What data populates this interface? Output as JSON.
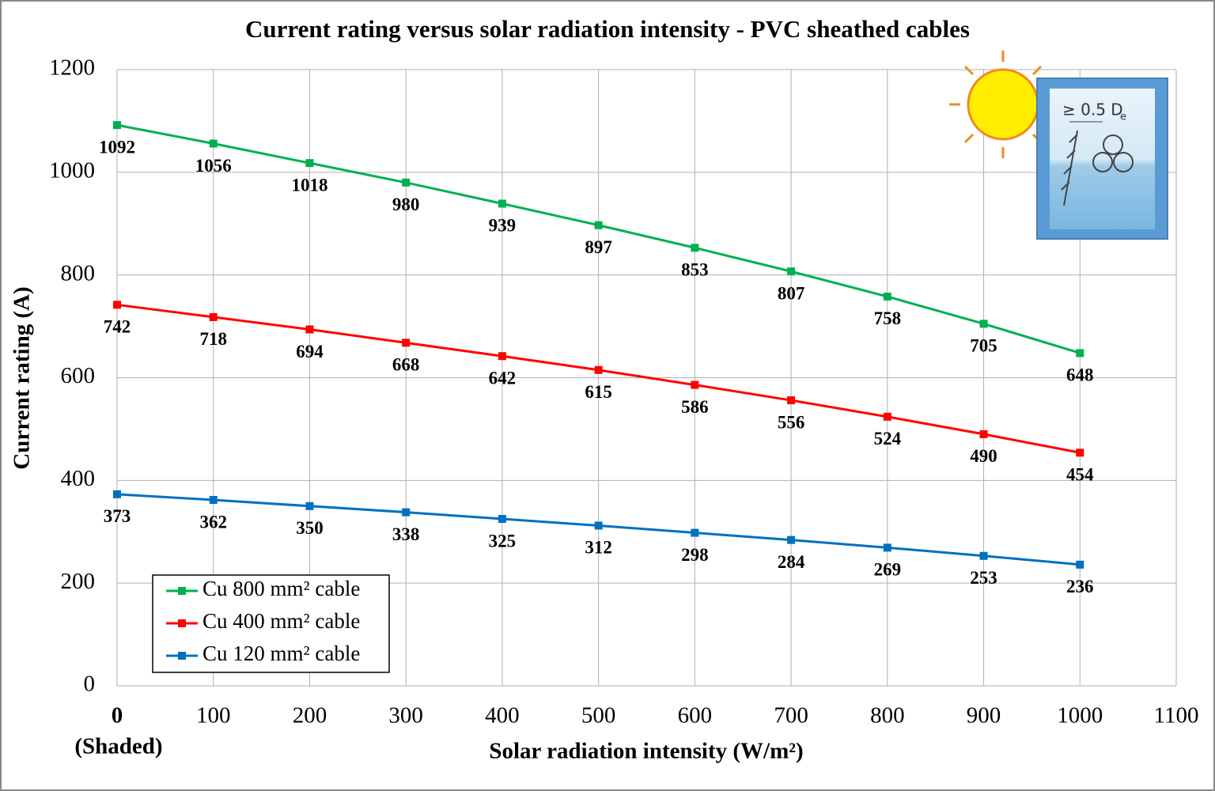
{
  "chart_data": {
    "type": "line",
    "title": "Current rating versus solar radiation intensity - PVC sheathed cables",
    "x_label": "Solar radiation intensity (W/m²)",
    "y_label": "Current rating (A)",
    "x_annotation": "(Shaded)",
    "icon_text": "≥ 0.5 D",
    "icon_subscript": "e",
    "x": [
      0,
      100,
      200,
      300,
      400,
      500,
      600,
      700,
      800,
      900,
      1000
    ],
    "series": [
      {
        "name": "Cu 800 mm² cable",
        "color": "#00b050",
        "values": [
          1092,
          1056,
          1018,
          980,
          939,
          897,
          853,
          807,
          758,
          705,
          648
        ]
      },
      {
        "name": "Cu 400 mm² cable",
        "color": "#ff0000",
        "values": [
          742,
          718,
          694,
          668,
          642,
          615,
          586,
          556,
          524,
          490,
          454
        ]
      },
      {
        "name": "Cu 120 mm² cable",
        "color": "#0070c0",
        "values": [
          373,
          362,
          350,
          338,
          325,
          312,
          298,
          284,
          269,
          253,
          236
        ]
      }
    ],
    "xlim": [
      0,
      1100
    ],
    "xticks": [
      0,
      100,
      200,
      300,
      400,
      500,
      600,
      700,
      800,
      900,
      1000,
      1100
    ],
    "ylim": [
      0,
      1200
    ],
    "yticks": [
      0,
      200,
      400,
      600,
      800,
      1000,
      1200
    ],
    "grid": true,
    "legend": "lower left"
  }
}
